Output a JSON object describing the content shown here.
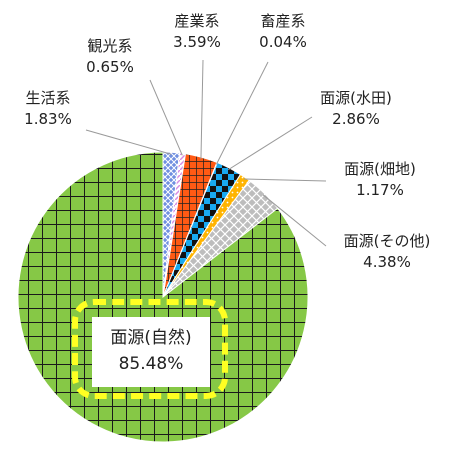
{
  "chart_data": {
    "type": "pie",
    "slices": [
      {
        "name": "生活系",
        "value": 1.83,
        "label": "1.83%",
        "color": "#6f8fe0",
        "pattern": "diagonal-check"
      },
      {
        "name": "観光系",
        "value": 0.65,
        "label": "0.65%",
        "color": "#d68ae3",
        "pattern": "diagonal-light"
      },
      {
        "name": "産業系",
        "value": 3.59,
        "label": "3.59%",
        "color": "#ff5a14",
        "pattern": "fine-grid"
      },
      {
        "name": "畜産系",
        "value": 0.04,
        "label": "0.04%",
        "color": "#3cc8d8",
        "pattern": "solid"
      },
      {
        "name": "面源(水田)",
        "value": 2.86,
        "label": "2.86%",
        "color": "#19a9f0",
        "pattern": "checkerboard"
      },
      {
        "name": "面源(畑地)",
        "value": 1.17,
        "label": "1.17%",
        "color": "#ffb400",
        "pattern": "dotted"
      },
      {
        "name": "面源(その他)",
        "value": 4.38,
        "label": "4.38%",
        "color": "#bdbdbd",
        "pattern": "diagonal-cross"
      },
      {
        "name": "面源(自然)",
        "value": 85.48,
        "label": "85.48%",
        "color": "#86c846",
        "pattern": "grid"
      }
    ],
    "highlight": {
      "slice": "面源(自然)",
      "style": "yellow-dashed-rounded-box"
    }
  }
}
